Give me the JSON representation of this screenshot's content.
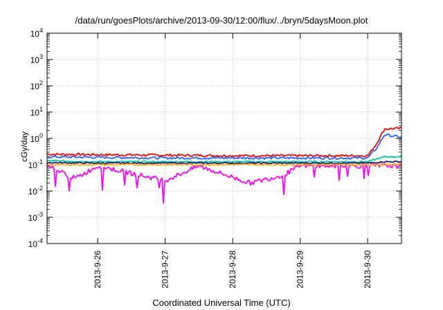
{
  "chart_data": {
    "type": "line",
    "title": "/data/run/goesPlots/archive/2013-09-30/12:00/flux/../bryn/5daysMoon.plot",
    "xlabel": "Coordinated Universal Time (UTC)",
    "ylabel": "cGy/day",
    "yscale": "log",
    "ylim": [
      0.0001,
      10000
    ],
    "xlim": [
      "2013-09-25 06:00",
      "2013-09-30 12:00"
    ],
    "y_ticks": [
      {
        "base": "10",
        "exp": "-4",
        "value": 0.0001
      },
      {
        "base": "10",
        "exp": "-3",
        "value": 0.001
      },
      {
        "base": "10",
        "exp": "-2",
        "value": 0.01
      },
      {
        "base": "10",
        "exp": "-1",
        "value": 0.1
      },
      {
        "base": "10",
        "exp": "0",
        "value": 1
      },
      {
        "base": "10",
        "exp": "1",
        "value": 10
      },
      {
        "base": "10",
        "exp": "2",
        "value": 100
      },
      {
        "base": "10",
        "exp": "3",
        "value": 1000
      },
      {
        "base": "10",
        "exp": "4",
        "value": 10000
      }
    ],
    "x_ticks": [
      "2013-9-26",
      "2013-9-27",
      "2013-9-28",
      "2013-9-29",
      "2013-9-30"
    ],
    "grid": true,
    "series": [
      {
        "color": "#ff0000",
        "points": [
          [
            "2013-09-25 06:00",
            0.25
          ],
          [
            "2013-09-26 00:00",
            0.24
          ],
          [
            "2013-09-27 00:00",
            0.23
          ],
          [
            "2013-09-28 00:00",
            0.22
          ],
          [
            "2013-09-29 00:00",
            0.22
          ],
          [
            "2013-09-30 00:00",
            0.22
          ],
          [
            "2013-09-30 03:00",
            0.6
          ],
          [
            "2013-09-30 06:00",
            2.3
          ],
          [
            "2013-09-30 12:00",
            2.4
          ]
        ]
      },
      {
        "color": "#1e64ff",
        "points": [
          [
            "2013-09-25 06:00",
            0.2
          ],
          [
            "2013-09-26 00:00",
            0.19
          ],
          [
            "2013-09-27 00:00",
            0.18
          ],
          [
            "2013-09-28 00:00",
            0.18
          ],
          [
            "2013-09-29 00:00",
            0.18
          ],
          [
            "2013-09-30 00:00",
            0.18
          ],
          [
            "2013-09-30 03:00",
            0.4
          ],
          [
            "2013-09-30 06:00",
            1.4
          ],
          [
            "2013-09-30 12:00",
            1.1
          ]
        ]
      },
      {
        "color": "#00c8a0",
        "points": [
          [
            "2013-09-25 06:00",
            0.14
          ],
          [
            "2013-09-26 00:00",
            0.13
          ],
          [
            "2013-09-27 00:00",
            0.13
          ],
          [
            "2013-09-28 00:00",
            0.13
          ],
          [
            "2013-09-29 00:00",
            0.13
          ],
          [
            "2013-09-30 00:00",
            0.13
          ],
          [
            "2013-09-30 06:00",
            0.2
          ],
          [
            "2013-09-30 12:00",
            0.2
          ]
        ]
      },
      {
        "color": "#1a1a6e",
        "points": [
          [
            "2013-09-25 06:00",
            0.12
          ],
          [
            "2013-09-26 00:00",
            0.115
          ],
          [
            "2013-09-27 00:00",
            0.115
          ],
          [
            "2013-09-28 00:00",
            0.115
          ],
          [
            "2013-09-29 00:00",
            0.115
          ],
          [
            "2013-09-30 00:00",
            0.115
          ],
          [
            "2013-09-30 06:00",
            0.13
          ],
          [
            "2013-09-30 12:00",
            0.13
          ]
        ]
      },
      {
        "color": "#ff00ff",
        "points": [
          [
            "2013-09-25 06:00",
            0.09
          ],
          [
            "2013-09-25 16:00",
            0.03
          ],
          [
            "2013-09-26 00:00",
            0.09
          ],
          [
            "2013-09-27 00:00",
            0.025
          ],
          [
            "2013-09-27 12:00",
            0.09
          ],
          [
            "2013-09-28 06:00",
            0.02
          ],
          [
            "2013-09-28 18:00",
            0.04
          ],
          [
            "2013-09-29 00:00",
            0.09
          ],
          [
            "2013-09-30 00:00",
            0.09
          ],
          [
            "2013-09-30 12:00",
            0.09
          ]
        ]
      },
      {
        "color": "#ffaa00",
        "points": [
          [
            "2013-09-25 06:00",
            0.1
          ],
          [
            "2013-09-27 00:00",
            0.1
          ],
          [
            "2013-09-29 00:00",
            0.1
          ],
          [
            "2013-09-30 12:00",
            0.1
          ]
        ]
      }
    ]
  }
}
